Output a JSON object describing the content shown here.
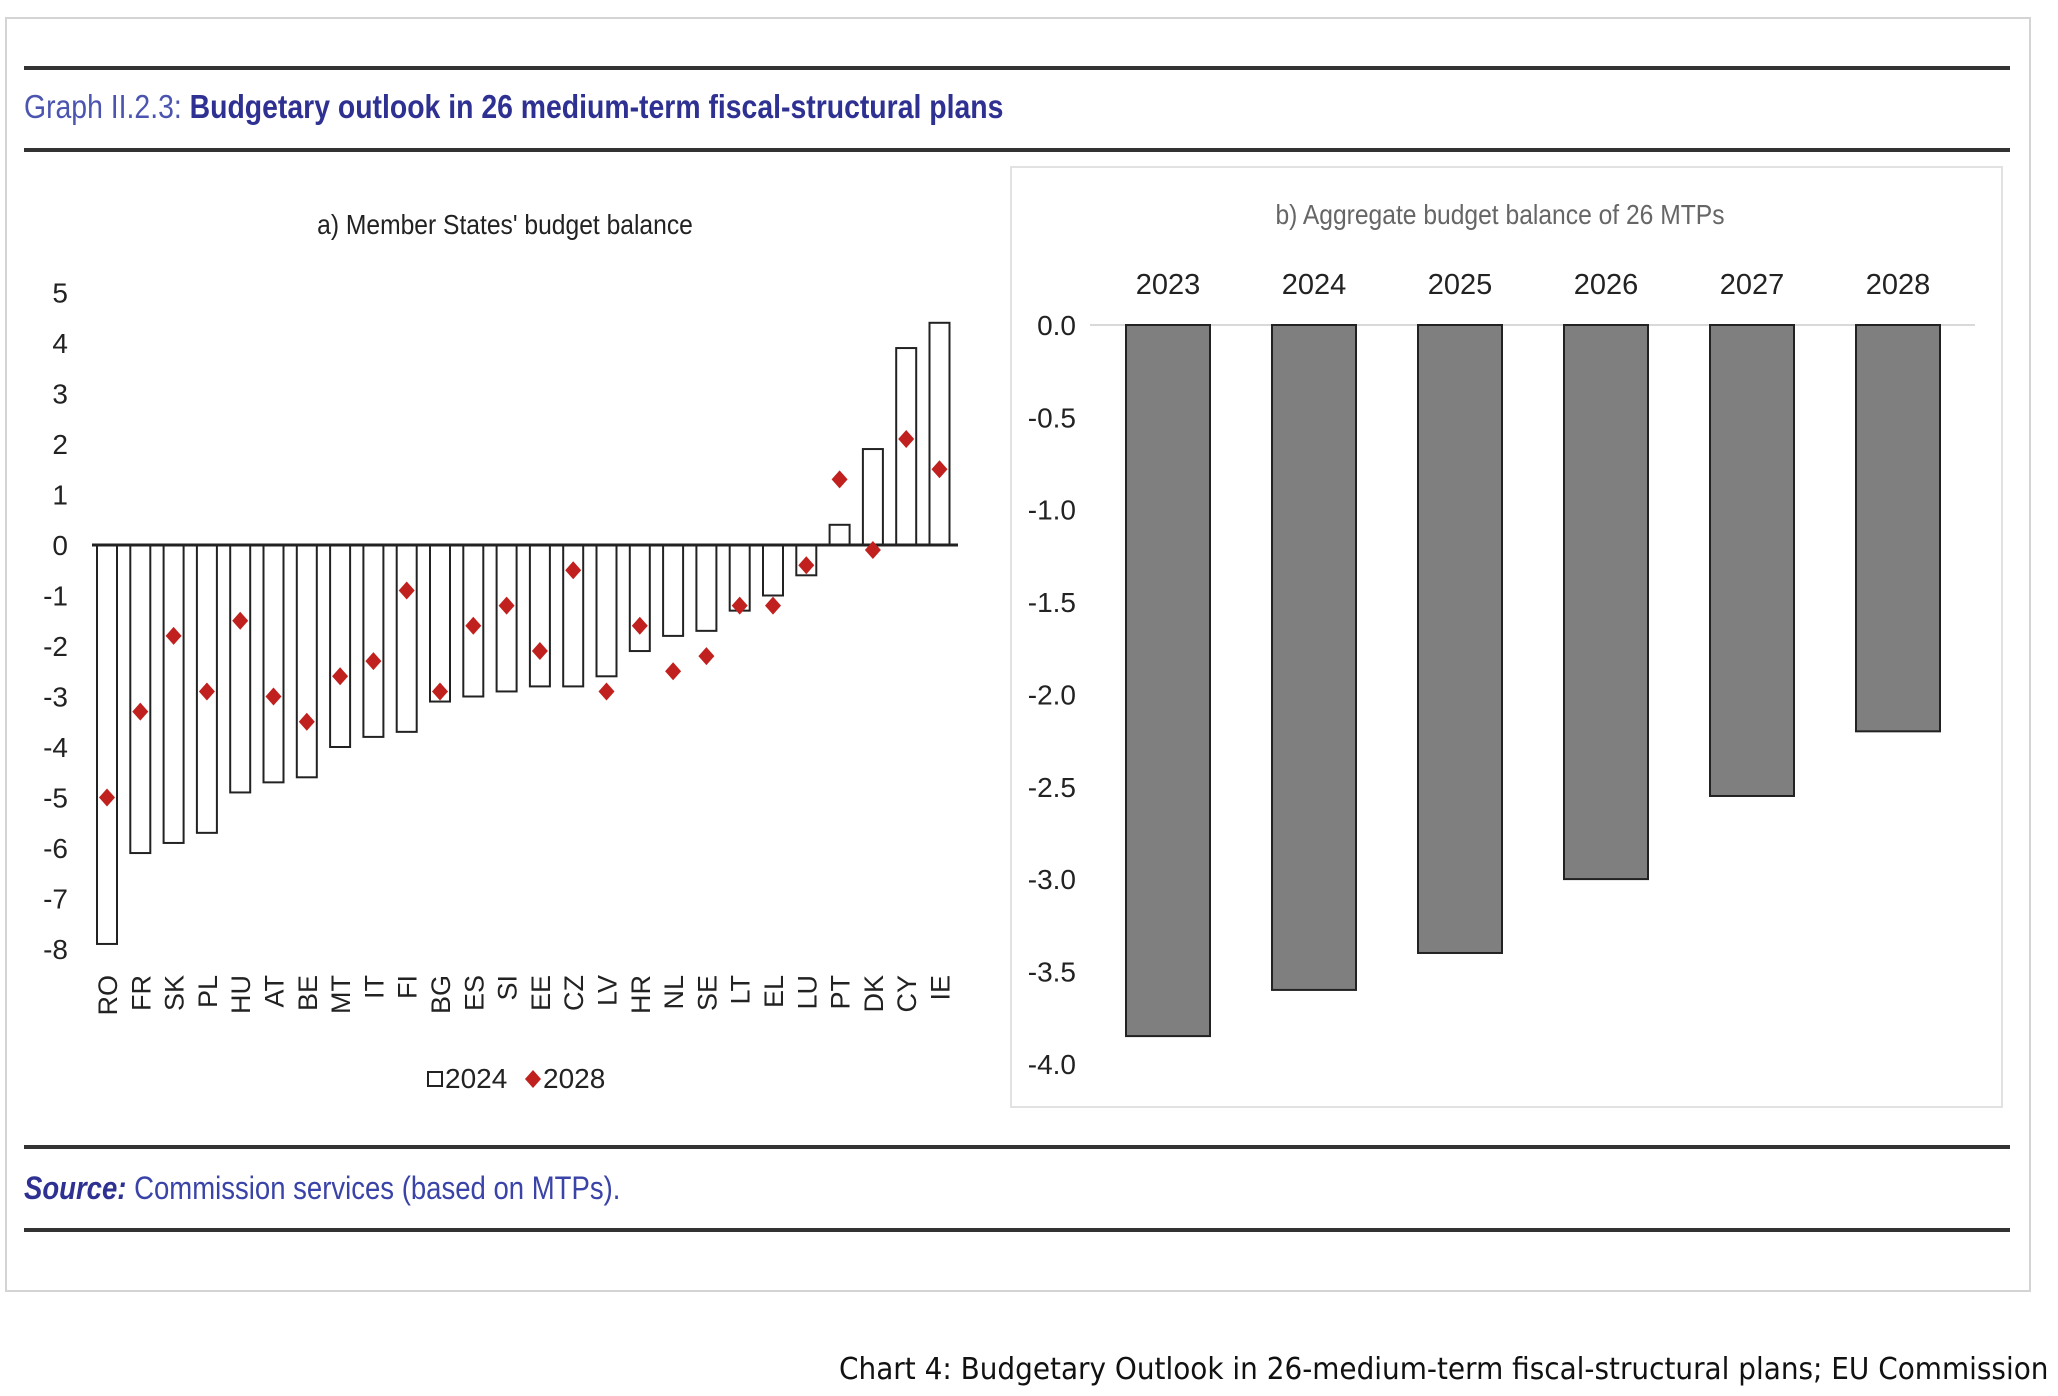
{
  "header": {
    "label": "Graph II.2.3:",
    "title": "Budgetary outlook in 26 medium-term fiscal-structural plans"
  },
  "source": {
    "label": "Source:",
    "text": "Commission services (based on MTPs)."
  },
  "caption": "Chart 4: Budgetary Outlook in 26-medium-term fiscal-structural plans; EU Commission",
  "colors": {
    "title": "#2e3192",
    "marker": "#c0201e",
    "bar_b": "#7f7f7f"
  },
  "chart_data": [
    {
      "type": "bar",
      "title": "a) Member States' budget balance",
      "categories": [
        "RO",
        "FR",
        "SK",
        "PL",
        "HU",
        "AT",
        "BE",
        "MT",
        "IT",
        "FI",
        "BG",
        "ES",
        "SI",
        "EE",
        "CZ",
        "LV",
        "HR",
        "NL",
        "SE",
        "LT",
        "EL",
        "LU",
        "PT",
        "DK",
        "CY",
        "IE"
      ],
      "series": [
        {
          "name": "2024",
          "kind": "bar",
          "values": [
            -7.9,
            -6.1,
            -5.9,
            -5.7,
            -4.9,
            -4.7,
            -4.6,
            -4.0,
            -3.8,
            -3.7,
            -3.1,
            -3.0,
            -2.9,
            -2.8,
            -2.8,
            -2.6,
            -2.1,
            -1.8,
            -1.7,
            -1.3,
            -1.0,
            -0.6,
            0.4,
            1.9,
            3.9,
            4.4
          ]
        },
        {
          "name": "2028",
          "kind": "marker",
          "values": [
            -5.0,
            -3.3,
            -1.8,
            -2.9,
            -1.5,
            -3.0,
            -3.5,
            -2.6,
            -2.3,
            -0.9,
            -2.9,
            -1.6,
            -1.2,
            -2.1,
            -0.5,
            -2.9,
            -1.6,
            -2.5,
            -2.2,
            -1.2,
            -1.2,
            -0.4,
            1.3,
            -0.1,
            2.1,
            1.5
          ]
        }
      ],
      "ylim": [
        -8,
        5
      ],
      "yticks": [
        "5",
        "4",
        "3",
        "2",
        "1",
        "0",
        "-1",
        "-2",
        "-3",
        "-4",
        "-5",
        "-6",
        "-7",
        "-8"
      ],
      "ytick_values": [
        5,
        4,
        3,
        2,
        1,
        0,
        -1,
        -2,
        -3,
        -4,
        -5,
        -6,
        -7,
        -8
      ],
      "legend": [
        "2024",
        "2028"
      ],
      "legend_position": "bottom",
      "grid": false
    },
    {
      "type": "bar",
      "title": "b) Aggregate budget balance of 26 MTPs",
      "categories": [
        "2023",
        "2024",
        "2025",
        "2026",
        "2027",
        "2028"
      ],
      "values": [
        -3.85,
        -3.6,
        -3.4,
        -3.0,
        -2.55,
        -2.2
      ],
      "ylim": [
        -4.0,
        0.0
      ],
      "yticks": [
        "0.0",
        "-0.5",
        "-1.0",
        "-1.5",
        "-2.0",
        "-2.5",
        "-3.0",
        "-3.5",
        "-4.0"
      ],
      "ytick_values": [
        0,
        -0.5,
        -1,
        -1.5,
        -2,
        -2.5,
        -3,
        -3.5,
        -4
      ],
      "xaxis_position": "top",
      "grid": false
    }
  ]
}
